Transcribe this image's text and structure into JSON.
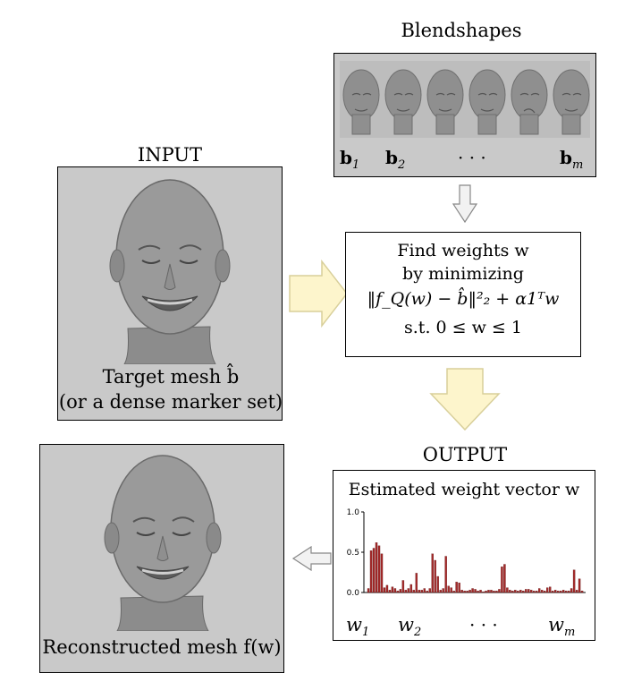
{
  "blendshapes": {
    "title": "Blendshapes",
    "labels": [
      {
        "base": "b",
        "sub": "1"
      },
      {
        "base": "b",
        "sub": "2"
      },
      {
        "base": "· · ·",
        "sub": ""
      },
      {
        "base": "b",
        "sub": "m"
      }
    ]
  },
  "input": {
    "title": "INPUT",
    "caption_line1": "Target mesh b̂",
    "caption_line2": "(or a dense marker set)"
  },
  "optimization": {
    "line1": "Find weights w",
    "line2": "by minimizing",
    "line3": "‖f_Q(w) − b̂‖²₂ + α1ᵀw",
    "line4": "s.t. 0 ≤ w ≤ 1"
  },
  "output": {
    "title": "OUTPUT",
    "box_title": "Estimated weight vector w",
    "weight_labels": [
      {
        "base": "w",
        "sub": "1"
      },
      {
        "base": "w",
        "sub": "2"
      },
      {
        "base": "· · ·",
        "sub": ""
      },
      {
        "base": "w",
        "sub": "m"
      }
    ]
  },
  "reconstructed": {
    "caption": "Reconstructed mesh f(w)"
  },
  "colors": {
    "panel_gray": "#c9c9c9",
    "arrow_fill": "#fdf5cc",
    "arrow_stroke": "#d8cf9a",
    "small_arrow_fill": "#f2f2f2",
    "bar_color": "#a52a2a"
  },
  "chart_data": {
    "type": "bar",
    "ylim": [
      0,
      1.0
    ],
    "yticks": [
      "1.0",
      "0.5",
      "0.0"
    ],
    "values": [
      0.05,
      0.52,
      0.55,
      0.62,
      0.58,
      0.48,
      0.06,
      0.09,
      0.03,
      0.07,
      0.05,
      0.02,
      0.04,
      0.15,
      0.03,
      0.05,
      0.1,
      0.03,
      0.24,
      0.03,
      0.03,
      0.05,
      0.02,
      0.05,
      0.48,
      0.4,
      0.2,
      0.03,
      0.05,
      0.45,
      0.08,
      0.06,
      0.02,
      0.13,
      0.12,
      0.03,
      0.02,
      0.02,
      0.03,
      0.05,
      0.04,
      0.02,
      0.03,
      0.01,
      0.02,
      0.03,
      0.03,
      0.02,
      0.02,
      0.04,
      0.32,
      0.35,
      0.06,
      0.03,
      0.02,
      0.03,
      0.02,
      0.03,
      0.02,
      0.04,
      0.04,
      0.03,
      0.02,
      0.02,
      0.05,
      0.03,
      0.02,
      0.06,
      0.07,
      0.02,
      0.03,
      0.02,
      0.02,
      0.03,
      0.02,
      0.02,
      0.05,
      0.28,
      0.03,
      0.17,
      0.02
    ]
  }
}
